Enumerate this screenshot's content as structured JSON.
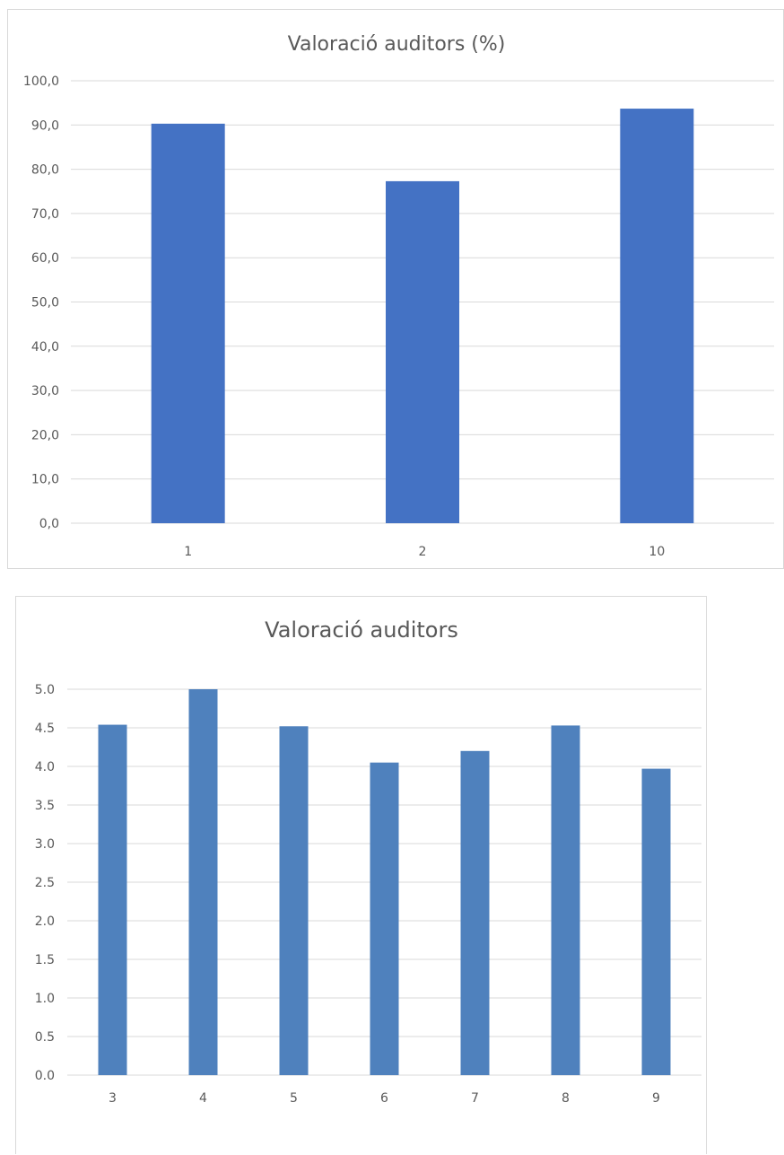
{
  "chart_data": [
    {
      "type": "bar",
      "title": "Valoració auditors (%)",
      "categories": [
        "1",
        "2",
        "10"
      ],
      "values": [
        90.3,
        77.3,
        93.7
      ],
      "ylim": [
        0,
        100
      ],
      "yticks": [
        "0,0",
        "10,0",
        "20,0",
        "30,0",
        "40,0",
        "50,0",
        "60,0",
        "70,0",
        "80,0",
        "90,0",
        "100,0"
      ],
      "xlabel": "",
      "ylabel": "",
      "grid": true,
      "legend": "none",
      "bar_color": "#4472c4"
    },
    {
      "type": "bar",
      "title": "Valoració auditors",
      "categories": [
        "3",
        "4",
        "5",
        "6",
        "7",
        "8",
        "9"
      ],
      "values": [
        4.54,
        5.0,
        4.52,
        4.05,
        4.2,
        4.53,
        3.97
      ],
      "ylim": [
        0,
        5
      ],
      "yticks": [
        "0.0",
        "0.5",
        "1.0",
        "1.5",
        "2.0",
        "2.5",
        "3.0",
        "3.5",
        "4.0",
        "4.5",
        "5.0"
      ],
      "xlabel": "",
      "ylabel": "",
      "grid": true,
      "legend": "none",
      "bar_color": "#4f81bd"
    }
  ]
}
